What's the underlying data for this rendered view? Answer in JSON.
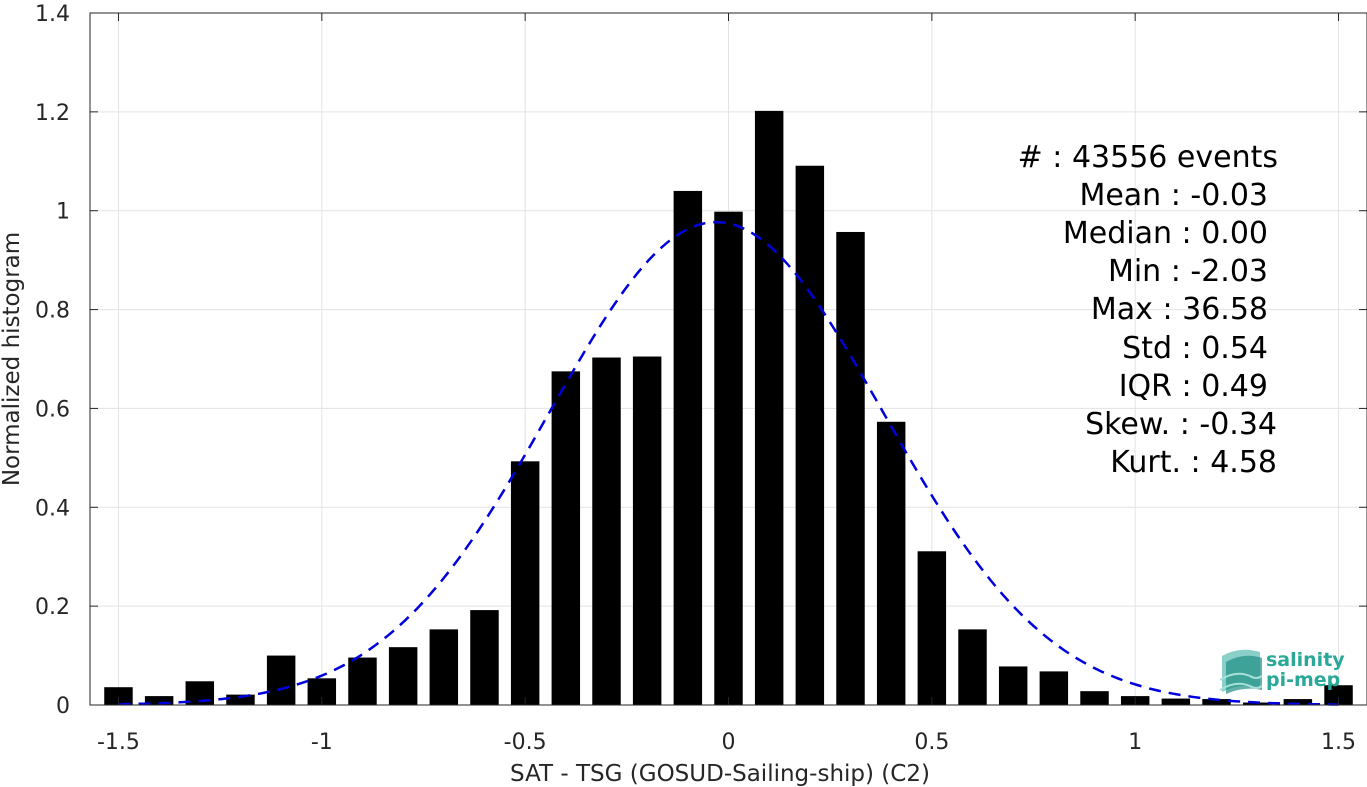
{
  "chart_data": {
    "type": "bar",
    "xlabel": "SAT - TSG (GOSUD-Sailing-ship) (C2)",
    "ylabel": "Normalized histogram",
    "xlim": [
      -1.57,
      1.57
    ],
    "ylim": [
      0,
      1.4
    ],
    "x_ticks": [
      -1.5,
      -1,
      -0.5,
      0,
      0.5,
      1,
      1.5
    ],
    "x_tick_labels": [
      "-1.5",
      "-1",
      "-0.5",
      "0",
      "0.5",
      "1",
      "1.5"
    ],
    "y_ticks": [
      0,
      0.2,
      0.4,
      0.6,
      0.8,
      1,
      1.2,
      1.4
    ],
    "y_tick_labels": [
      "0",
      "0.2",
      "0.4",
      "0.6",
      "0.8",
      "1",
      "1.2",
      "1.4"
    ],
    "grid": true,
    "bar_width": 0.07,
    "bar_color": "#000000",
    "bars": {
      "x": [
        -1.5,
        -1.4,
        -1.3,
        -1.2,
        -1.1,
        -1.0,
        -0.9,
        -0.8,
        -0.7,
        -0.6,
        -0.5,
        -0.4,
        -0.3,
        -0.2,
        -0.1,
        0.0,
        0.1,
        0.2,
        0.3,
        0.4,
        0.5,
        0.6,
        0.7,
        0.8,
        0.9,
        1.0,
        1.1,
        1.2,
        1.3,
        1.4,
        1.5
      ],
      "values": [
        0.036,
        0.018,
        0.048,
        0.021,
        0.1,
        0.054,
        0.096,
        0.117,
        0.153,
        0.192,
        0.493,
        0.675,
        0.703,
        0.705,
        1.04,
        0.998,
        1.202,
        1.091,
        0.957,
        0.573,
        0.311,
        0.153,
        0.078,
        0.068,
        0.028,
        0.018,
        0.013,
        0.012,
        0.005,
        0.012,
        0.04
      ]
    },
    "fit_curve": {
      "style": "dashed",
      "color": "#0000dd",
      "mean": -0.03,
      "std": 0.41,
      "peak": 0.977,
      "x_range": [
        -1.5,
        1.5
      ]
    },
    "annotations": [
      "#  : 43556 events",
      "Mean : -0.03",
      "Median : 0.00",
      "Min : -2.03",
      "Max : 36.58",
      "Std : 0.54",
      "IQR : 0.49",
      "Skew. : -0.34",
      "Kurt. : 4.58"
    ]
  },
  "logo": {
    "line1": "salinity",
    "line2": "pi-mep",
    "color": "#2aa89a"
  }
}
